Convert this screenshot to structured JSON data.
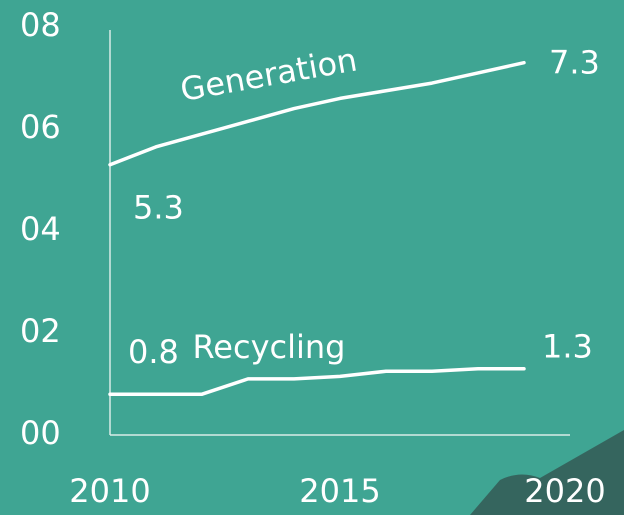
{
  "chart_data": {
    "type": "line",
    "x": [
      2010,
      2011,
      2012,
      2013,
      2014,
      2015,
      2016,
      2017,
      2018,
      2019
    ],
    "series": [
      {
        "name": "Generation",
        "color": "#ffffff",
        "values": [
          5.3,
          5.65,
          5.9,
          6.15,
          6.4,
          6.6,
          6.75,
          6.9,
          7.1,
          7.3
        ]
      },
      {
        "name": "Recycling",
        "color": "#ffffff",
        "values": [
          0.8,
          0.8,
          0.8,
          1.1,
          1.1,
          1.15,
          1.25,
          1.25,
          1.3,
          1.3
        ]
      }
    ],
    "xlim": [
      2010,
      2020
    ],
    "xticks": [
      2010,
      2015,
      2020
    ],
    "ylim": [
      0,
      8
    ],
    "yticks": [
      {
        "value": 0,
        "label": "00"
      },
      {
        "value": 2,
        "label": "02"
      },
      {
        "value": 4,
        "label": "04"
      },
      {
        "value": 6,
        "label": "06"
      },
      {
        "value": 8,
        "label": "08"
      }
    ],
    "grid": false
  }
}
